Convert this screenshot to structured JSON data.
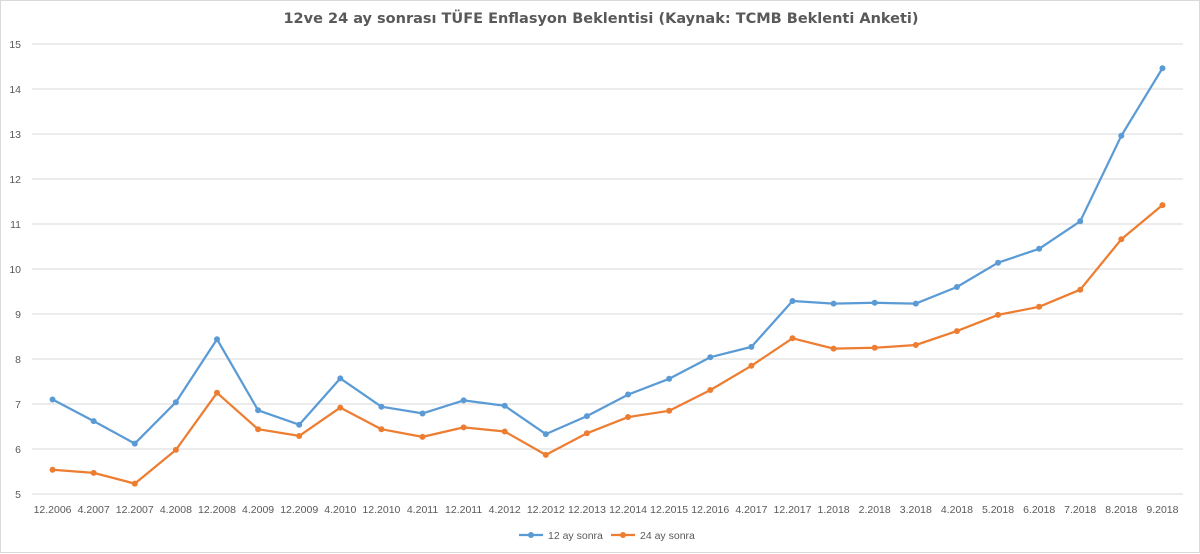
{
  "chart_data": {
    "type": "line",
    "title": "12ve 24 ay sonrası TÜFE Enflasyon Beklentisi (Kaynak: TCMB Beklenti Anketi)",
    "xlabel": "",
    "ylabel": "",
    "ylim": [
      5,
      15
    ],
    "yticks": [
      5,
      6,
      7,
      8,
      9,
      10,
      11,
      12,
      13,
      14,
      15
    ],
    "grid": "horizontal",
    "legend_position": "bottom",
    "categories": [
      "12.2006",
      "4.2007",
      "12.2007",
      "4.2008",
      "12.2008",
      "4.2009",
      "12.2009",
      "4.2010",
      "12.2010",
      "4.2011",
      "12.2011",
      "4.2012",
      "12.2012",
      "12.2013",
      "12.2014",
      "12.2015",
      "12.2016",
      "4.2017",
      "12.2017",
      "1.2018",
      "2.2018",
      "3.2018",
      "4.2018",
      "5.2018",
      "6.2018",
      "7.2018",
      "8.2018",
      "9.2018"
    ],
    "series": [
      {
        "name": "12 ay sonra",
        "color": "#5b9bd5",
        "values": [
          7.1,
          6.62,
          6.12,
          7.04,
          8.44,
          6.86,
          6.54,
          7.57,
          6.94,
          6.79,
          7.08,
          6.96,
          6.33,
          6.73,
          7.21,
          7.56,
          8.04,
          8.27,
          9.29,
          9.23,
          9.25,
          9.23,
          9.6,
          10.14,
          10.45,
          11.06,
          12.96,
          14.46
        ]
      },
      {
        "name": "24 ay sonra",
        "color": "#ed7d31",
        "values": [
          5.54,
          5.47,
          5.23,
          5.98,
          7.25,
          6.44,
          6.29,
          6.92,
          6.44,
          6.27,
          6.48,
          6.39,
          5.87,
          6.35,
          6.71,
          6.85,
          7.31,
          7.85,
          8.46,
          8.23,
          8.25,
          8.31,
          8.62,
          8.98,
          9.16,
          9.54,
          10.66,
          11.42
        ]
      }
    ]
  }
}
